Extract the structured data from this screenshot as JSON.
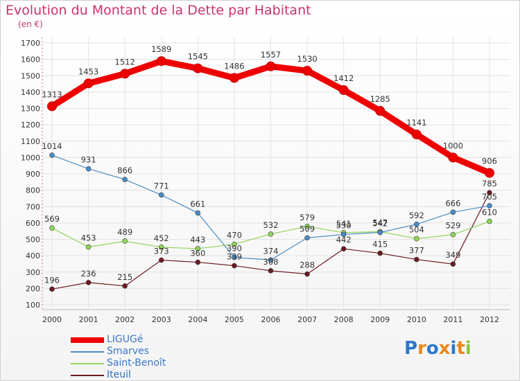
{
  "header": {
    "title": "Evolution du Montant de la Dette par Habitant",
    "subtitle": "(en €)"
  },
  "chart_data": {
    "type": "line",
    "title": "Evolution du Montant de la Dette par Habitant",
    "subtitle": "(en €)",
    "xlabel": "",
    "ylabel": "",
    "ylim": [
      100,
      1700
    ],
    "y_ticks": [
      100,
      200,
      300,
      400,
      500,
      600,
      700,
      800,
      900,
      1000,
      1100,
      1200,
      1300,
      1400,
      1500,
      1600,
      1700
    ],
    "grid": true,
    "legend_position": "bottom-left",
    "categories": [
      "2000",
      "2001",
      "2002",
      "2003",
      "2004",
      "2005",
      "2006",
      "2007",
      "2008",
      "2009",
      "2010",
      "2011",
      "2012"
    ],
    "series": [
      {
        "name": "LIGUGé",
        "color": "#ee0000",
        "values": [
          1313,
          1453,
          1512,
          1589,
          1545,
          1486,
          1557,
          1530,
          1412,
          1285,
          1141,
          1000,
          906
        ]
      },
      {
        "name": "Smarves",
        "color": "#4a8bc4",
        "values": [
          1014,
          931,
          866,
          771,
          661,
          390,
          374,
          509,
          530,
          542,
          592,
          666,
          705
        ]
      },
      {
        "name": "Saint-Benoît",
        "color": "#8fd45a",
        "values": [
          569,
          453,
          489,
          452,
          443,
          470,
          532,
          579,
          541,
          547,
          504,
          529,
          610
        ]
      },
      {
        "name": "Iteuil",
        "color": "#6b1a1f",
        "values": [
          196,
          236,
          215,
          373,
          360,
          339,
          308,
          288,
          442,
          415,
          377,
          349,
          785
        ]
      }
    ]
  },
  "branding": {
    "logo_text": "Proxiti",
    "logo_colors": [
      "#2e78c8",
      "#e98a1e",
      "#2e78c8",
      "#e98a1e",
      "#2e78c8",
      "#e98a1e",
      "#8cc63f"
    ]
  }
}
